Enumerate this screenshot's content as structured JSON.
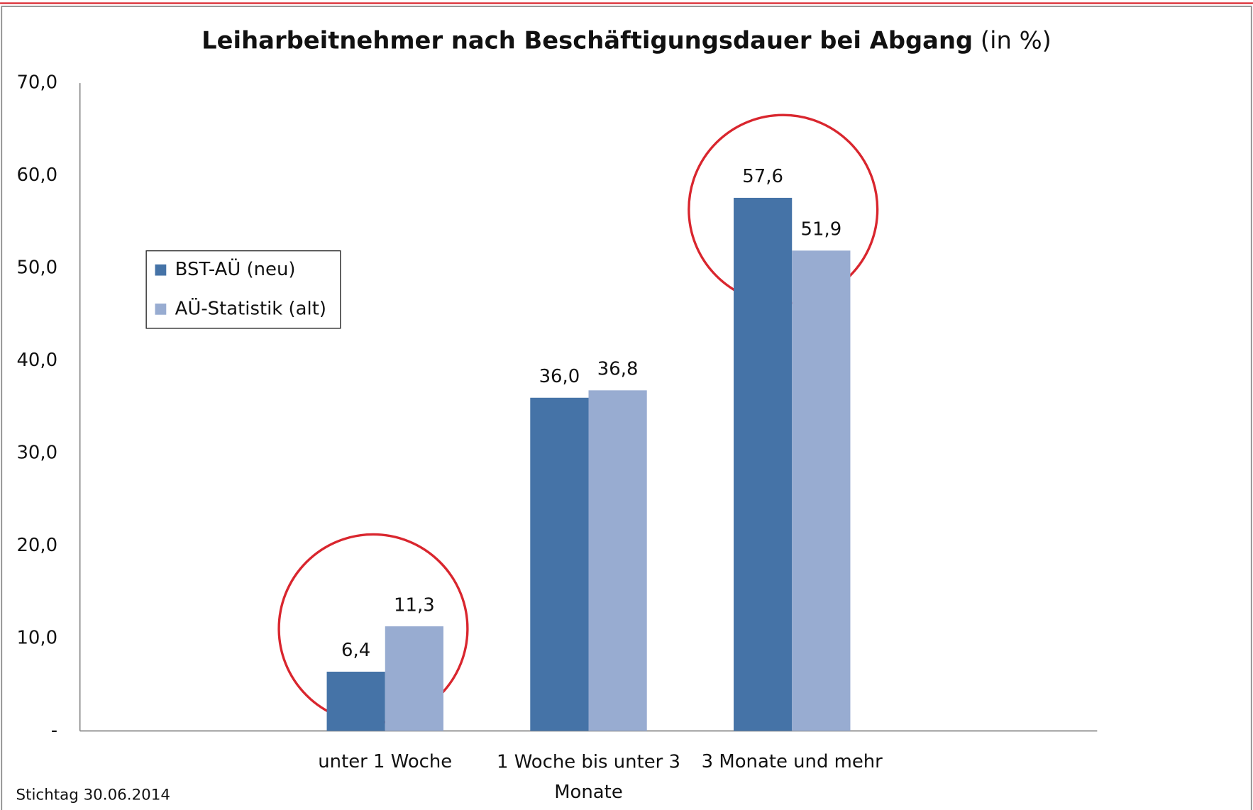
{
  "chart_data": {
    "type": "bar",
    "title": "Leiharbeitnehmer nach Beschäftigungsdauer bei Abgang",
    "title_suffix": "(in %)",
    "annotation": "Stichtag 30.06.2014",
    "categories": [
      "unter 1 Woche",
      "1 Woche bis unter 3 Monate",
      "3 Monate und mehr"
    ],
    "series": [
      {
        "name": "BST-AÜ (neu)",
        "color": "#4573a7",
        "values": [
          6.4,
          36.0,
          57.6
        ],
        "value_labels": [
          "6,4",
          "36,0",
          "57,6"
        ]
      },
      {
        "name": "AÜ-Statistik (alt)",
        "color": "#98acd1",
        "values": [
          11.3,
          36.8,
          51.9
        ],
        "value_labels": [
          "11,3",
          "36,8",
          "51,9"
        ]
      }
    ],
    "ylim": [
      0,
      70
    ],
    "yticks": [
      {
        "value": 0,
        "label": "-"
      },
      {
        "value": 10,
        "label": "10,0"
      },
      {
        "value": 20,
        "label": "20,0"
      },
      {
        "value": 30,
        "label": "30,0"
      },
      {
        "value": 40,
        "label": "40,0"
      },
      {
        "value": 50,
        "label": "50,0"
      },
      {
        "value": 60,
        "label": "60,0"
      },
      {
        "value": 70,
        "label": "70,0"
      }
    ],
    "grid": false,
    "legend": "left"
  }
}
